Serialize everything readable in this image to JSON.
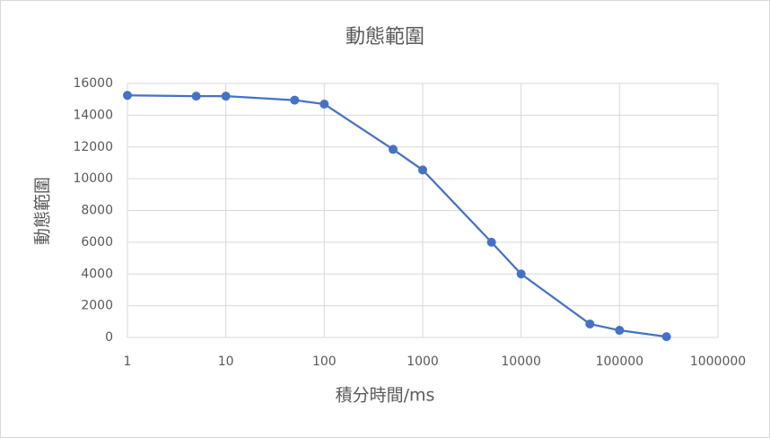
{
  "chart_data": {
    "type": "line",
    "title": "動態範圍",
    "x_label": "積分時間/ms",
    "y_label": "動態範圍",
    "x": [
      1,
      5,
      10,
      50,
      100,
      500,
      1000,
      5000,
      10000,
      50000,
      100000,
      300000
    ],
    "series": [
      {
        "name": "動態範圍",
        "color": "#4472c4",
        "values": [
          15250,
          15200,
          15200,
          14950,
          14700,
          11850,
          10550,
          6000,
          4000,
          850,
          450,
          50
        ]
      }
    ],
    "xscale": "log",
    "xlim": [
      1,
      1000000
    ],
    "xticks": [
      1,
      10,
      100,
      1000,
      10000,
      100000,
      1000000
    ],
    "ylim": [
      0,
      16000
    ],
    "yticks": [
      0,
      2000,
      4000,
      6000,
      8000,
      10000,
      12000,
      14000,
      16000
    ],
    "grid": true
  }
}
